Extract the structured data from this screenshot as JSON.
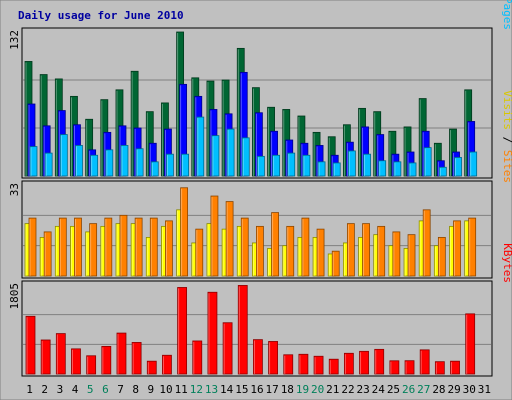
{
  "chart_data": {
    "type": "bar",
    "title": "Daily usage for June 2010",
    "days": [
      "1",
      "2",
      "3",
      "4",
      "5",
      "6",
      "7",
      "8",
      "9",
      "10",
      "11",
      "12",
      "13",
      "14",
      "15",
      "16",
      "17",
      "18",
      "19",
      "20",
      "21",
      "22",
      "23",
      "24",
      "25",
      "26",
      "27",
      "28",
      "29",
      "30",
      "31"
    ],
    "weekend_days": [
      "5",
      "6",
      "12",
      "13",
      "19",
      "20",
      "26",
      "27"
    ],
    "panels": [
      {
        "name": "hits-files-pages",
        "max_label": "132",
        "ymax": 132,
        "legend": [
          "Pages",
          "Files",
          "Hits"
        ],
        "series": [
          {
            "name": "Hits",
            "color": "#006633",
            "values": [
              105,
              93,
              89,
              73,
              52,
              70,
              79,
              96,
              59,
              67,
              132,
              90,
              87,
              88,
              117,
              81,
              63,
              61,
              55,
              40,
              36,
              47,
              62,
              59,
              41,
              45,
              71,
              30,
              43,
              79,
              null
            ]
          },
          {
            "name": "Files",
            "color": "#0000ff",
            "values": [
              66,
              46,
              60,
              47,
              24,
              40,
              46,
              44,
              30,
              43,
              84,
              73,
              61,
              57,
              95,
              58,
              41,
              33,
              30,
              28,
              19,
              31,
              45,
              38,
              20,
              22,
              41,
              14,
              22,
              50,
              null
            ]
          },
          {
            "name": "Pages",
            "color": "#00bfff",
            "values": [
              27,
              21,
              38,
              28,
              19,
              24,
              28,
              25,
              13,
              20,
              20,
              54,
              37,
              43,
              35,
              18,
              19,
              21,
              19,
              13,
              12,
              23,
              20,
              14,
              13,
              12,
              26,
              8,
              17,
              22,
              null
            ]
          }
        ]
      },
      {
        "name": "visits-sites",
        "max_label": "33",
        "ymax": 33,
        "legend": [
          "Sites",
          "Visits"
        ],
        "series": [
          {
            "name": "Visits",
            "color": "#ffff00",
            "values": [
              19,
              14,
              18,
              18,
              16,
              18,
              19,
              19,
              14,
              18,
              24,
              12,
              19,
              17,
              18,
              12,
              10,
              11,
              14,
              14,
              8,
              12,
              14,
              15,
              11,
              10,
              20,
              11,
              18,
              20,
              null
            ]
          },
          {
            "name": "Sites",
            "color": "#ff8000",
            "values": [
              21,
              16,
              21,
              21,
              19,
              21,
              22,
              21,
              21,
              20,
              32,
              17,
              29,
              27,
              21,
              18,
              23,
              18,
              21,
              17,
              9,
              19,
              19,
              18,
              16,
              15,
              24,
              14,
              20,
              21,
              null
            ]
          }
        ]
      },
      {
        "name": "kbytes",
        "max_label": "1805",
        "ymax": 1805,
        "legend": [
          "KBytes"
        ],
        "series": [
          {
            "name": "KBytes",
            "color": "#ff0000",
            "values": [
              1170,
              690,
              820,
              510,
              370,
              560,
              830,
              640,
              260,
              380,
              1755,
              670,
              1658,
              1040,
              1796,
              697,
              660,
              390,
              400,
              360,
              300,
              420,
              460,
              500,
              268,
              270,
              490,
              250,
              260,
              1220,
              null
            ]
          }
        ]
      }
    ]
  }
}
